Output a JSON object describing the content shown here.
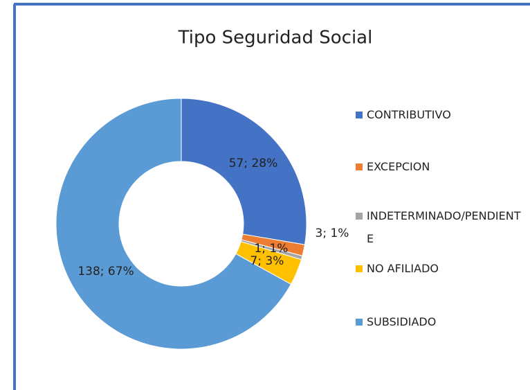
{
  "chart_data": {
    "type": "donut",
    "title": "Tipo Seguridad Social",
    "categories": [
      "CONTRIBUTIVO",
      "EXCEPCION",
      "INDETERMINADO/PENDIENTE",
      "NO AFILIADO",
      "SUBSIDIADO"
    ],
    "values": [
      57,
      3,
      1,
      7,
      138
    ],
    "value_labels": [
      "57; 28%",
      "3; 1%",
      "1; 1%",
      "7; 3%",
      "138; 67%"
    ],
    "colors": [
      "#4472c4",
      "#ed7d31",
      "#a5a5a5",
      "#ffc000",
      "#5b9bd5"
    ],
    "legend": "right"
  }
}
